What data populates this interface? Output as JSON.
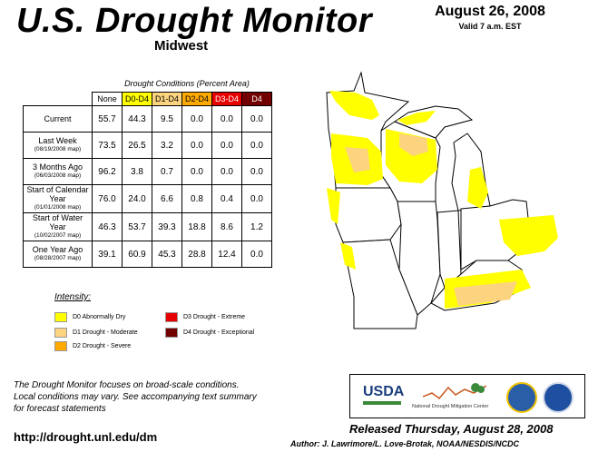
{
  "header": {
    "title": "U.S. Drought Monitor",
    "region": "Midwest",
    "date": "August 26, 2008",
    "valid": "Valid 7 a.m. EST"
  },
  "table": {
    "caption": "Drought Conditions (Percent Area)",
    "columns": [
      "None",
      "D0-D4",
      "D1-D4",
      "D2-D4",
      "D3-D4",
      "D4"
    ],
    "column_colors": [
      "#ffffff",
      "#ffff00",
      "#fcd37f",
      "#ffaa00",
      "#e60000",
      "#730000"
    ],
    "rows": [
      {
        "label": "Current",
        "sub": "",
        "values": [
          "55.7",
          "44.3",
          "9.5",
          "0.0",
          "0.0",
          "0.0"
        ]
      },
      {
        "label": "Last Week",
        "sub": "(08/19/2008 map)",
        "values": [
          "73.5",
          "26.5",
          "3.2",
          "0.0",
          "0.0",
          "0.0"
        ]
      },
      {
        "label": "3 Months Ago",
        "sub": "(06/03/2008 map)",
        "values": [
          "96.2",
          "3.8",
          "0.7",
          "0.0",
          "0.0",
          "0.0"
        ]
      },
      {
        "label": "Start of Calendar Year",
        "sub": "(01/01/2008 map)",
        "values": [
          "76.0",
          "24.0",
          "6.6",
          "0.8",
          "0.4",
          "0.0"
        ]
      },
      {
        "label": "Start of Water Year",
        "sub": "(10/02/2007 map)",
        "values": [
          "46.3",
          "53.7",
          "39.3",
          "18.8",
          "8.6",
          "1.2"
        ]
      },
      {
        "label": "One Year Ago",
        "sub": "(08/28/2007 map)",
        "values": [
          "39.1",
          "60.9",
          "45.3",
          "28.8",
          "12.4",
          "0.0"
        ]
      }
    ]
  },
  "legend": {
    "title": "Intensity:",
    "items": [
      {
        "label": "D0 Abnormally Dry",
        "color": "#ffff00"
      },
      {
        "label": "D1 Drought - Moderate",
        "color": "#fcd37f"
      },
      {
        "label": "D2 Drought - Severe",
        "color": "#ffaa00"
      },
      {
        "label": "D3 Drought - Extreme",
        "color": "#e60000"
      },
      {
        "label": "D4 Drought - Exceptional",
        "color": "#730000"
      }
    ]
  },
  "note": {
    "line1": "The Drought Monitor focuses on broad-scale conditions.",
    "line2": "Local conditions may vary. See accompanying text summary",
    "line3": "for forecast statements"
  },
  "footer": {
    "url": "http://drought.unl.edu/dm",
    "released": "Released Thursday, August 28, 2008",
    "author": "Author: J. Lawrimore/L. Love-Brotak, NOAA/NESDIS/NCDC"
  },
  "logos": {
    "usda": "USDA",
    "ndmc": "National Drought Mitigation Center"
  }
}
